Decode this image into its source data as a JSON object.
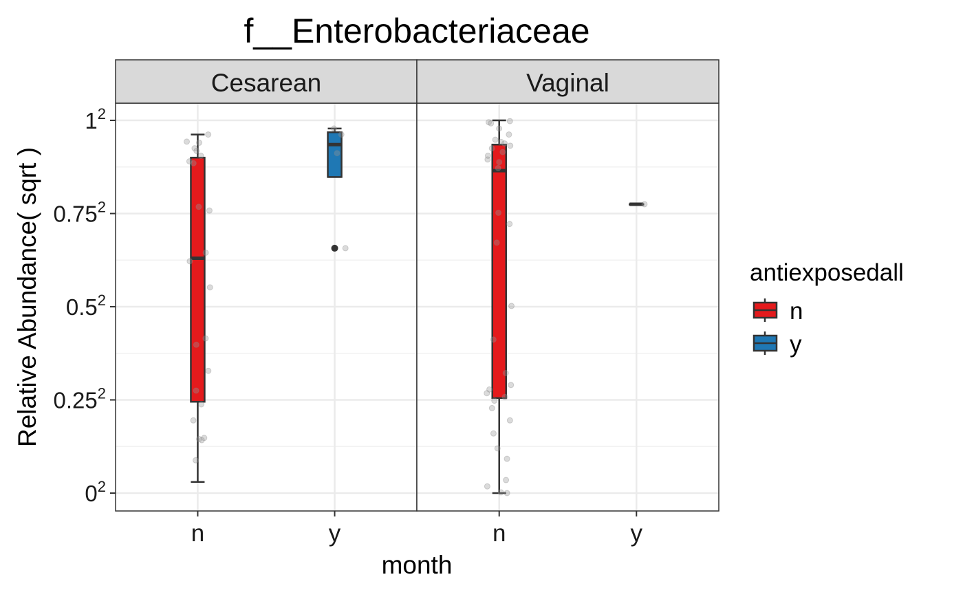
{
  "chart_data": {
    "type": "boxplot",
    "title": "f__Enterobacteriaceae",
    "xlabel": "month",
    "ylabel": "Relative Abundance( sqrt )",
    "y_scale": "sqrt",
    "ylim": [
      0,
      1
    ],
    "y_ticks": [
      {
        "value": 0,
        "base": "0",
        "exp": "2"
      },
      {
        "value": 0.25,
        "base": "0.25",
        "exp": "2"
      },
      {
        "value": 0.5,
        "base": "0.5",
        "exp": "2"
      },
      {
        "value": 0.75,
        "base": "0.75",
        "exp": "2"
      },
      {
        "value": 1,
        "base": "1",
        "exp": "2"
      }
    ],
    "grid": true,
    "legend": {
      "title": "antiexposedall",
      "position": "right",
      "entries": [
        {
          "key": "n",
          "label": "n",
          "color": "#E41A1C"
        },
        {
          "key": "y",
          "label": "y",
          "color": "#1F78B4"
        }
      ]
    },
    "categories": [
      "n",
      "y"
    ],
    "panels": [
      {
        "label": "Cesarean",
        "boxes": [
          {
            "category": "n",
            "group": "n",
            "whisker_low": 0.03,
            "q1": 0.245,
            "median": 0.63,
            "q3": 0.9,
            "whisker_high": 0.962,
            "outliers": []
          },
          {
            "category": "y",
            "group": "y",
            "whisker_low": 0.848,
            "q1": 0.848,
            "median": 0.935,
            "q3": 0.968,
            "whisker_high": 0.978,
            "outliers": [
              0.657
            ]
          }
        ],
        "points": {
          "n": [
            0.962,
            0.943,
            0.94,
            0.925,
            0.918,
            0.905,
            0.89,
            0.885,
            0.768,
            0.758,
            0.645,
            0.622,
            0.552,
            0.415,
            0.398,
            0.328,
            0.275,
            0.238,
            0.195,
            0.148,
            0.145,
            0.142,
            0.088
          ],
          "y": [
            0.978,
            0.962,
            0.912,
            0.657
          ]
        }
      },
      {
        "label": "Vaginal",
        "boxes": [
          {
            "category": "n",
            "group": "n",
            "whisker_low": 0.0,
            "q1": 0.255,
            "median": 0.865,
            "q3": 0.935,
            "whisker_high": 1.0,
            "outliers": []
          },
          {
            "category": "y",
            "group": "y",
            "whisker_low": 0.775,
            "q1": 0.775,
            "median": 0.775,
            "q3": 0.775,
            "whisker_high": 0.775,
            "outliers": []
          }
        ],
        "points": {
          "n": [
            0.998,
            0.995,
            0.992,
            0.978,
            0.962,
            0.948,
            0.942,
            0.938,
            0.932,
            0.925,
            0.915,
            0.905,
            0.895,
            0.888,
            0.872,
            0.752,
            0.722,
            0.672,
            0.502,
            0.412,
            0.322,
            0.29,
            0.278,
            0.268,
            0.258,
            0.248,
            0.228,
            0.195,
            0.16,
            0.12,
            0.092,
            0.035,
            0.018,
            0.002,
            0.0
          ],
          "y": [
            0.775
          ]
        }
      }
    ]
  }
}
